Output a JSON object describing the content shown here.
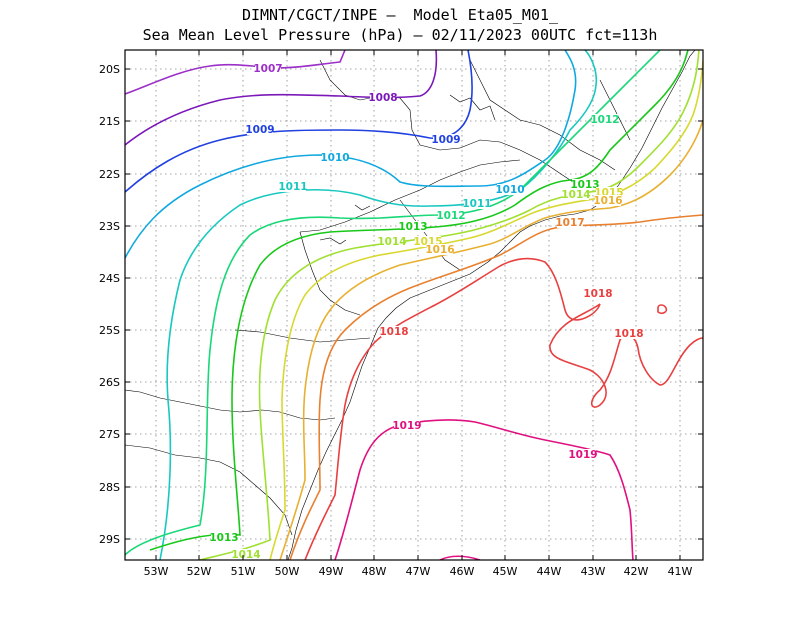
{
  "title": {
    "line1": "DIMNT/CGCT/INPE —  Model Eta05_M01_",
    "line2": "Sea Mean Level Pressure (hPa) — 02/11/2023 00UTC fct=113h"
  },
  "axes": {
    "lat_labels": [
      "20S",
      "21S",
      "22S",
      "23S",
      "24S",
      "25S",
      "26S",
      "27S",
      "28S",
      "29S"
    ],
    "lon_labels": [
      "53W",
      "52W",
      "51W",
      "50W",
      "49W",
      "48W",
      "47W",
      "46W",
      "45W",
      "44W",
      "43W",
      "42W",
      "41W"
    ]
  },
  "colors": {
    "1007": "#9b2fc7",
    "1008": "#7a18b8",
    "1009": "#2040e0",
    "1010": "#10a8e0",
    "1011": "#18c8c0",
    "1012": "#18d878",
    "1013": "#18c818",
    "1014": "#a0e030",
    "1015": "#d8d830",
    "1016": "#e8b030",
    "1017": "#e88030",
    "1018": "#e84040",
    "1019": "#e01080",
    "border": "#000000",
    "grid": "#888888"
  },
  "isobar_labels": [
    {
      "id": "l1007",
      "text": "1007",
      "level": "1007"
    },
    {
      "id": "l1008",
      "text": "1008",
      "level": "1008"
    },
    {
      "id": "l1009a",
      "text": "1009",
      "level": "1009"
    },
    {
      "id": "l1009b",
      "text": "1009",
      "level": "1009"
    },
    {
      "id": "l1010a",
      "text": "1010",
      "level": "1010"
    },
    {
      "id": "l1010b",
      "text": "1010",
      "level": "1010"
    },
    {
      "id": "l1011a",
      "text": "1011",
      "level": "1011"
    },
    {
      "id": "l1011b",
      "text": "1011",
      "level": "1011"
    },
    {
      "id": "l1012a",
      "text": "1012",
      "level": "1012"
    },
    {
      "id": "l1012b",
      "text": "1012",
      "level": "1012"
    },
    {
      "id": "l1013a",
      "text": "1013",
      "level": "1013"
    },
    {
      "id": "l1013b",
      "text": "1013",
      "level": "1013"
    },
    {
      "id": "l1013c",
      "text": "1013",
      "level": "1013"
    },
    {
      "id": "l1014a",
      "text": "1014",
      "level": "1014"
    },
    {
      "id": "l1014b",
      "text": "1014",
      "level": "1014"
    },
    {
      "id": "l1014c",
      "text": "1014",
      "level": "1014"
    },
    {
      "id": "l1015a",
      "text": "1015",
      "level": "1015"
    },
    {
      "id": "l1015b",
      "text": "1015",
      "level": "1015"
    },
    {
      "id": "l1016a",
      "text": "1016",
      "level": "1016"
    },
    {
      "id": "l1016b",
      "text": "1016",
      "level": "1016"
    },
    {
      "id": "l1017",
      "text": "1017",
      "level": "1017"
    },
    {
      "id": "l1018a",
      "text": "1018",
      "level": "1018"
    },
    {
      "id": "l1018b",
      "text": "1018",
      "level": "1018"
    },
    {
      "id": "l1018c",
      "text": "1018",
      "level": "1018"
    },
    {
      "id": "l1019a",
      "text": "1019",
      "level": "1019"
    },
    {
      "id": "l1019b",
      "text": "1019",
      "level": "1019"
    }
  ]
}
